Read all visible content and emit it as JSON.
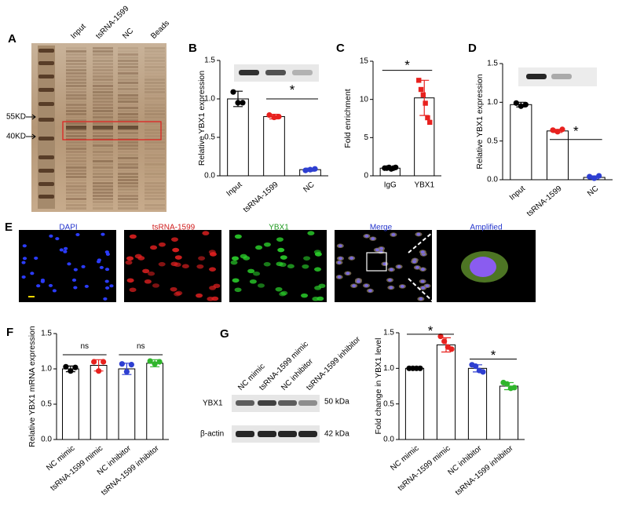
{
  "panel_a": {
    "letter": "A",
    "lanes": [
      "Input",
      "tsRNA-1599",
      "NC",
      "Beads"
    ],
    "markers": [
      "55KD",
      "40KD"
    ]
  },
  "panel_e": {
    "letter": "E",
    "channels": [
      "DAPI",
      "tsRNA-1599",
      "YBX1",
      "Merge",
      "Amplified"
    ]
  },
  "panel_g_blot": {
    "letter": "G",
    "lanes": [
      "NC mimic",
      "tsRNA-1599 mimic",
      "NC inhibitor",
      "tsRNA-1599 inhibitor"
    ],
    "proteins": [
      "YBX1",
      "β-actin"
    ],
    "sizes": [
      "50 kDa",
      "42 kDa"
    ]
  },
  "chart_data": [
    {
      "type": "bar",
      "panel": "B",
      "ylabel": "Relative YBX1 expression",
      "categories": [
        "Input",
        "tsRNA-1599",
        "NC"
      ],
      "values": [
        1.0,
        0.77,
        0.08
      ],
      "errors": [
        0.1,
        0.03,
        0.02
      ],
      "points": [
        [
          1.09,
          0.95,
          0.95
        ],
        [
          0.79,
          0.76,
          0.77
        ],
        [
          0.07,
          0.08,
          0.09
        ]
      ],
      "point_colors": [
        "#000000",
        "#e8211e",
        "#2e3fd1"
      ],
      "ylim": [
        0,
        1.5
      ],
      "yticks": [
        {
          "value": 0,
          "label": "0.0"
        },
        {
          "value": 0.5,
          "label": "0.5"
        },
        {
          "value": 1,
          "label": "1.0"
        },
        {
          "value": 1.5,
          "label": "1.5"
        }
      ],
      "annotations": [
        "*"
      ]
    },
    {
      "type": "bar",
      "panel": "C",
      "ylabel": "Fold enrichment",
      "categories": [
        "IgG",
        "YBX1"
      ],
      "values": [
        1.0,
        10.2
      ],
      "errors": [
        0.1,
        2.3
      ],
      "points": [
        [
          1.0,
          1.0,
          1.1,
          0.9,
          1.0,
          1.1
        ],
        [
          12.5,
          11.3,
          10.6,
          9.5,
          7.6,
          7.0
        ]
      ],
      "point_colors": [
        "#000000",
        "#e8211e"
      ],
      "ylim": [
        0,
        15
      ],
      "yticks": [
        0,
        5,
        10,
        15
      ],
      "annotations": [
        "*"
      ]
    },
    {
      "type": "bar",
      "panel": "D",
      "ylabel": "Relative YBX1 expression",
      "categories": [
        "Input",
        "tsRNA-1599",
        "NC"
      ],
      "values": [
        0.97,
        0.63,
        0.03
      ],
      "errors": [
        0.03,
        0.02,
        0.02
      ],
      "points": [
        [
          0.99,
          0.95,
          0.97
        ],
        [
          0.64,
          0.62,
          0.65
        ],
        [
          0.04,
          0.02,
          0.05
        ]
      ],
      "point_colors": [
        "#000000",
        "#e8211e",
        "#2e3fd1"
      ],
      "ylim": [
        0,
        1.5
      ],
      "yticks": [
        {
          "value": 0,
          "label": "0.0"
        },
        {
          "value": 0.5,
          "label": "0.5"
        },
        {
          "value": 1,
          "label": "1.0"
        },
        {
          "value": 1.5,
          "label": "1.5"
        }
      ],
      "annotations": [
        "*"
      ]
    },
    {
      "type": "bar",
      "panel": "F",
      "ylabel": "Relative YBX1 mRNA expression",
      "categories": [
        "NC mimic",
        "tsRNA-1599 mimic",
        "NC inhibitor",
        "tsRNA-1599 inhibitor"
      ],
      "values": [
        1.0,
        1.05,
        1.0,
        1.08
      ],
      "errors": [
        0.04,
        0.08,
        0.08,
        0.05
      ],
      "points": [
        [
          1.03,
          0.97,
          1.02
        ],
        [
          1.1,
          0.97,
          1.1
        ],
        [
          1.07,
          0.96,
          1.06
        ],
        [
          1.11,
          1.07,
          1.1
        ]
      ],
      "point_colors": [
        "#000000",
        "#e8211e",
        "#2e3fd1",
        "#2fb52b"
      ],
      "ylim": [
        0,
        1.5
      ],
      "yticks": [
        {
          "value": 0,
          "label": "0.0"
        },
        {
          "value": 0.5,
          "label": "0.5"
        },
        {
          "value": 1,
          "label": "1.0"
        },
        {
          "value": 1.5,
          "label": "1.5"
        }
      ],
      "annotations": [
        "ns",
        "ns"
      ]
    },
    {
      "type": "bar",
      "ylabel": "Fold change in YBX1 level",
      "categories": [
        "NC mimic",
        "tsRNA-1599 mimic",
        "NC inhibitor",
        "tsRNA-1599 inhibitor"
      ],
      "values": [
        1.0,
        1.33,
        1.0,
        0.75
      ],
      "errors": [
        0.01,
        0.1,
        0.05,
        0.05
      ],
      "points": [
        [
          1.0,
          1.0,
          1.0,
          1.0
        ],
        [
          1.45,
          1.38,
          1.3,
          1.27
        ],
        [
          1.05,
          1.03,
          0.97,
          0.95
        ],
        [
          0.8,
          0.78,
          0.72,
          0.73
        ]
      ],
      "point_colors": [
        "#000000",
        "#e8211e",
        "#2e3fd1",
        "#2fb52b"
      ],
      "ylim": [
        0,
        1.5
      ],
      "yticks": [
        {
          "value": 0,
          "label": "0.0"
        },
        {
          "value": 0.5,
          "label": "0.5"
        },
        {
          "value": 1,
          "label": "1.0"
        },
        {
          "value": 1.5,
          "label": "1.5"
        }
      ],
      "annotations": [
        "*",
        "*"
      ]
    }
  ]
}
